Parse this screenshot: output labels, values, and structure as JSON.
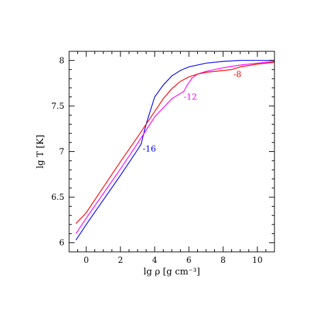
{
  "chart_data": {
    "type": "line",
    "title": "",
    "xlabel": "lg ρ [g cm⁻³]",
    "ylabel": "lg T [K]",
    "xlim": [
      -1,
      11
    ],
    "ylim": [
      5.9,
      8.1
    ],
    "x_ticks": [
      0,
      2,
      4,
      6,
      8,
      10
    ],
    "y_ticks": [
      6,
      6.5,
      7,
      7.5,
      8
    ],
    "x_tick_labels": [
      "0",
      "2",
      "4",
      "6",
      "8",
      "10"
    ],
    "y_tick_labels": [
      "6",
      "6.5",
      "7",
      "7.5",
      "8"
    ],
    "grid": false,
    "series": [
      {
        "name": "-16",
        "color": "#0000ff",
        "x": [
          -0.6,
          0,
          1,
          2,
          3,
          3.2,
          3.5,
          4,
          4.5,
          5,
          5.5,
          6,
          7,
          8,
          9,
          10,
          11
        ],
        "y": [
          6.03,
          6.2,
          6.47,
          6.74,
          7.02,
          7.08,
          7.3,
          7.6,
          7.73,
          7.83,
          7.89,
          7.93,
          7.97,
          7.99,
          8.0,
          8.0,
          8.0
        ]
      },
      {
        "name": "-12",
        "color": "#ff00ff",
        "x": [
          -0.6,
          0,
          1,
          2,
          3,
          4,
          5,
          5.7,
          5.9,
          6.2,
          6.5,
          7,
          8,
          9,
          10,
          11
        ],
        "y": [
          6.1,
          6.27,
          6.54,
          6.81,
          7.09,
          7.38,
          7.58,
          7.66,
          7.73,
          7.81,
          7.85,
          7.88,
          7.92,
          7.95,
          7.97,
          7.99
        ]
      },
      {
        "name": "-8",
        "color": "#ff0000",
        "x": [
          -0.6,
          0,
          1,
          2,
          3,
          4,
          4.5,
          5,
          5.5,
          6,
          6.5,
          7,
          8,
          8.5,
          9,
          10,
          11
        ],
        "y": [
          6.21,
          6.33,
          6.61,
          6.89,
          7.16,
          7.44,
          7.58,
          7.69,
          7.77,
          7.82,
          7.85,
          7.87,
          7.89,
          7.9,
          7.93,
          7.96,
          7.98
        ]
      }
    ],
    "annotations": [
      {
        "text": "-16",
        "series": "-16",
        "x": 3.3,
        "y": 7.0
      },
      {
        "text": "-12",
        "series": "-12",
        "x": 5.7,
        "y": 7.57
      },
      {
        "text": "-8",
        "series": "-8",
        "x": 8.6,
        "y": 7.82
      }
    ]
  }
}
